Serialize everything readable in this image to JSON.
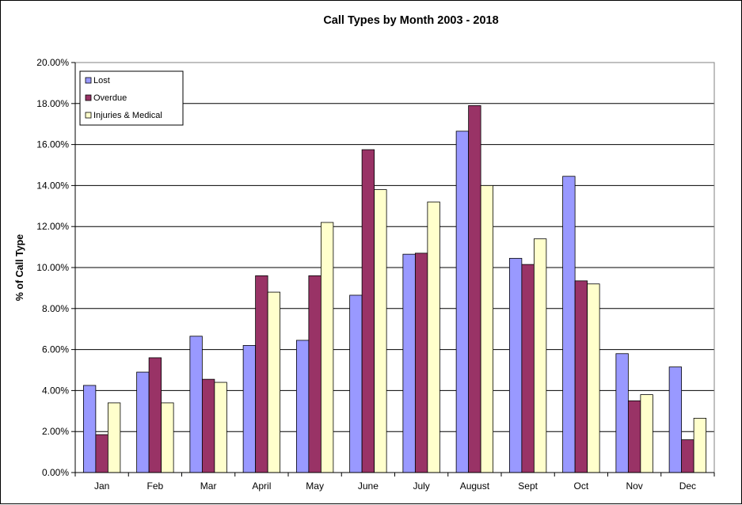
{
  "chart_data": {
    "type": "bar",
    "title": "Call Types by Month 2003 - 2018",
    "xlabel": "",
    "ylabel": "% of Call Type",
    "ylim": [
      0,
      20
    ],
    "y_tick_step": 2,
    "y_tick_format": "percent_2dp",
    "grid": true,
    "legend_position": "top-left",
    "categories": [
      "Jan",
      "Feb",
      "Mar",
      "April",
      "May",
      "June",
      "July",
      "August",
      "Sept",
      "Oct",
      "Nov",
      "Dec"
    ],
    "series": [
      {
        "name": "Lost",
        "color": "#9999FF",
        "values": [
          4.25,
          4.9,
          6.65,
          6.2,
          6.45,
          8.65,
          10.65,
          16.65,
          10.45,
          14.45,
          5.8,
          5.15
        ]
      },
      {
        "name": "Overdue",
        "color": "#993366",
        "values": [
          1.85,
          5.6,
          4.55,
          9.6,
          9.6,
          15.75,
          10.7,
          17.9,
          10.15,
          9.35,
          3.5,
          1.6
        ]
      },
      {
        "name": "Injuries & Medical",
        "color": "#FFFFCC",
        "values": [
          3.4,
          3.4,
          4.4,
          8.8,
          12.2,
          13.8,
          13.2,
          14.0,
          11.4,
          9.2,
          3.8,
          2.65
        ]
      }
    ]
  }
}
